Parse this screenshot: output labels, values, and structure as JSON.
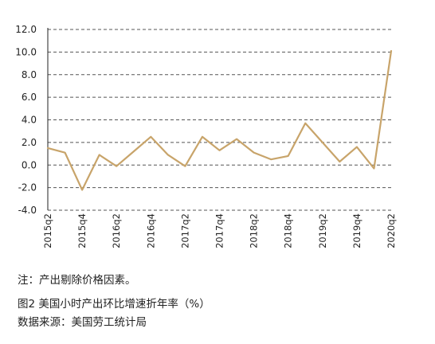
{
  "chart_data": {
    "type": "line",
    "title": "",
    "xlabel": "",
    "ylabel": "",
    "ylim": [
      -4.0,
      12.0
    ],
    "yticks": [
      "12.0",
      "10.0",
      "8.0",
      "6.0",
      "4.0",
      "2.0",
      "0.0",
      "-2.0",
      "-4.0"
    ],
    "grid": "horizontal dashed",
    "x": [
      "2015q2",
      "2015q3",
      "2015q4",
      "2016q1",
      "2016q2",
      "2016q3",
      "2016q4",
      "2017q1",
      "2017q2",
      "2017q3",
      "2017q4",
      "2018q1",
      "2018q2",
      "2018q3",
      "2018q4",
      "2019q1",
      "2019q2",
      "2019q3",
      "2019q4",
      "2020q1",
      "2020q2"
    ],
    "x_tick_labels": [
      "2015q2",
      "2015q4",
      "2016q2",
      "2016q4",
      "2017q2",
      "2017q4",
      "2018q2",
      "2018q4",
      "2019q2",
      "2019q4",
      "2020q2"
    ],
    "series": [
      {
        "values": [
          1.5,
          1.1,
          -2.2,
          0.9,
          -0.1,
          1.2,
          2.5,
          0.9,
          -0.1,
          2.5,
          1.3,
          2.3,
          1.1,
          0.5,
          0.8,
          3.7,
          2.0,
          0.3,
          1.6,
          -0.3,
          10.1
        ]
      }
    ],
    "colors": {
      "line": "#c8a46a",
      "grid": "#555555",
      "axis": "#222222"
    }
  },
  "captions": {
    "note": "注：产出剔除价格因素。",
    "figure": "图2 美国小时产出环比增速折年率（%）",
    "source": "数据来源：美国劳工统计局"
  }
}
